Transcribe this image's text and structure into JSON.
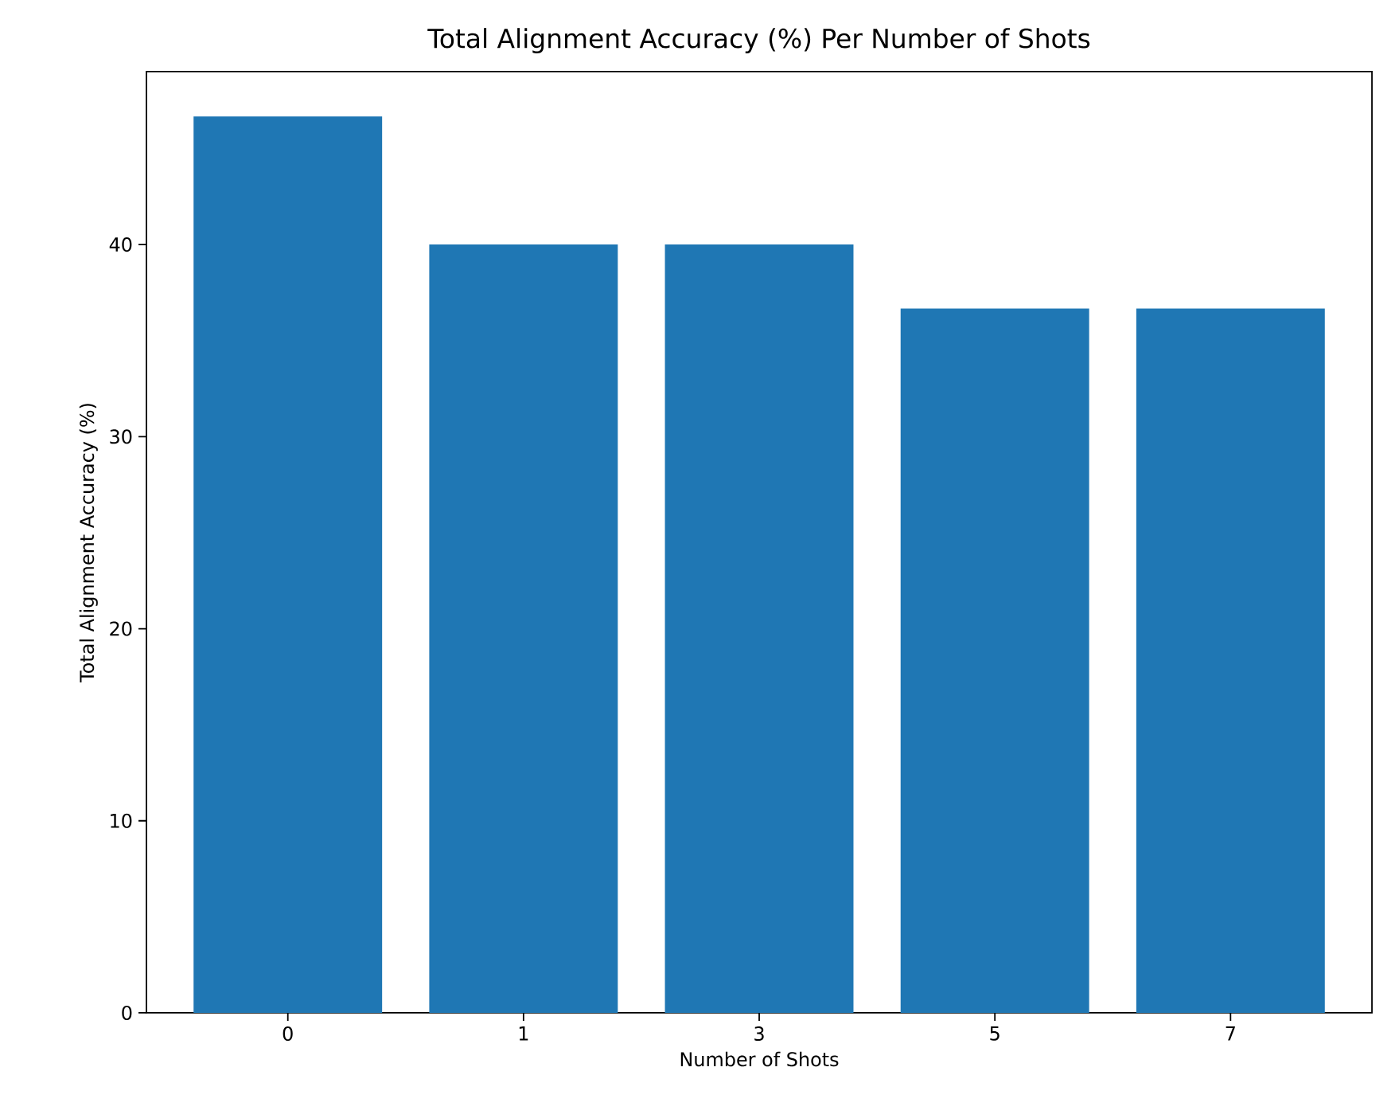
{
  "chart_data": {
    "type": "bar",
    "title": "Total Alignment Accuracy (%) Per Number of Shots",
    "xlabel": "Number of Shots",
    "ylabel": "Total Alignment Accuracy (%)",
    "categories": [
      "0",
      "1",
      "3",
      "5",
      "7"
    ],
    "values": [
      46.67,
      40,
      40,
      36.67,
      36.67
    ],
    "color": "#1f77b4",
    "ylim": [
      0,
      49
    ],
    "yticks": [
      0,
      10,
      20,
      30,
      40
    ]
  }
}
